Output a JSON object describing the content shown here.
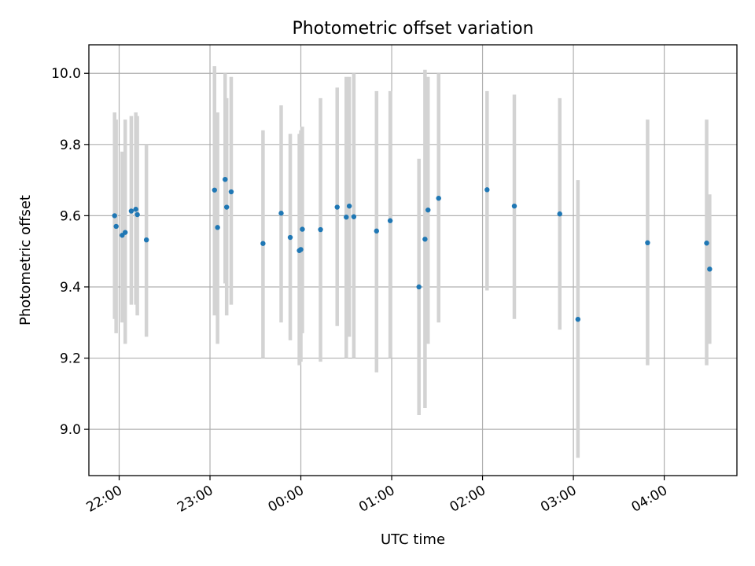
{
  "chart_data": {
    "type": "scatter",
    "title": "Photometric offset variation",
    "xlabel": "UTC time",
    "ylabel": "Photometric offset",
    "x_axis_type": "time",
    "xlim": [
      "21:40",
      "04:48"
    ],
    "ylim": [
      8.87,
      10.08
    ],
    "x_ticks": [
      "22:00",
      "23:00",
      "00:00",
      "01:00",
      "02:00",
      "03:00",
      "04:00"
    ],
    "y_ticks": [
      "9.0",
      "9.2",
      "9.4",
      "9.6",
      "9.8",
      "10.0"
    ],
    "grid": true,
    "marker_color": "#1f77b4",
    "errorbar_color": "#d3d3d3",
    "series": [
      {
        "points": [
          {
            "t": "21:57",
            "y": 9.6,
            "err_lo": 9.31,
            "err_hi": 9.89
          },
          {
            "t": "21:58",
            "y": 9.57,
            "err_lo": 9.27,
            "err_hi": 9.87
          },
          {
            "t": "22:02",
            "y": 9.545,
            "err_lo": 9.3,
            "err_hi": 9.78
          },
          {
            "t": "22:04",
            "y": 9.553,
            "err_lo": 9.24,
            "err_hi": 9.87
          },
          {
            "t": "22:08",
            "y": 9.613,
            "err_lo": 9.35,
            "err_hi": 9.88
          },
          {
            "t": "22:11",
            "y": 9.618,
            "err_lo": 9.35,
            "err_hi": 9.89
          },
          {
            "t": "22:12",
            "y": 9.603,
            "err_lo": 9.32,
            "err_hi": 9.88
          },
          {
            "t": "22:18",
            "y": 9.532,
            "err_lo": 9.26,
            "err_hi": 9.8
          },
          {
            "t": "23:03",
            "y": 9.672,
            "err_lo": 9.32,
            "err_hi": 10.02
          },
          {
            "t": "23:05",
            "y": 9.567,
            "err_lo": 9.24,
            "err_hi": 9.89
          },
          {
            "t": "23:10",
            "y": 9.702,
            "err_lo": 9.41,
            "err_hi": 10.0
          },
          {
            "t": "23:11",
            "y": 9.624,
            "err_lo": 9.32,
            "err_hi": 9.93
          },
          {
            "t": "23:14",
            "y": 9.667,
            "err_lo": 9.35,
            "err_hi": 9.99
          },
          {
            "t": "23:35",
            "y": 9.522,
            "err_lo": 9.2,
            "err_hi": 9.84
          },
          {
            "t": "23:47",
            "y": 9.607,
            "err_lo": 9.3,
            "err_hi": 9.91
          },
          {
            "t": "23:53",
            "y": 9.539,
            "err_lo": 9.25,
            "err_hi": 9.83
          },
          {
            "t": "23:59",
            "y": 9.502,
            "err_lo": 9.18,
            "err_hi": 9.83
          },
          {
            "t": "00:00",
            "y": 9.505,
            "err_lo": 9.19,
            "err_hi": 9.84
          },
          {
            "t": "00:01",
            "y": 9.562,
            "err_lo": 9.27,
            "err_hi": 9.85
          },
          {
            "t": "00:13",
            "y": 9.561,
            "err_lo": 9.19,
            "err_hi": 9.93
          },
          {
            "t": "00:24",
            "y": 9.624,
            "err_lo": 9.29,
            "err_hi": 9.96
          },
          {
            "t": "00:30",
            "y": 9.596,
            "err_lo": 9.2,
            "err_hi": 9.99
          },
          {
            "t": "00:32",
            "y": 9.627,
            "err_lo": 9.26,
            "err_hi": 9.99
          },
          {
            "t": "00:35",
            "y": 9.597,
            "err_lo": 9.2,
            "err_hi": 10.0
          },
          {
            "t": "00:50",
            "y": 9.557,
            "err_lo": 9.16,
            "err_hi": 9.95
          },
          {
            "t": "00:59",
            "y": 9.586,
            "err_lo": 9.2,
            "err_hi": 9.95
          },
          {
            "t": "01:18",
            "y": 9.4,
            "err_lo": 9.04,
            "err_hi": 9.76
          },
          {
            "t": "01:22",
            "y": 9.534,
            "err_lo": 9.06,
            "err_hi": 10.01
          },
          {
            "t": "01:24",
            "y": 9.616,
            "err_lo": 9.24,
            "err_hi": 9.99
          },
          {
            "t": "01:31",
            "y": 9.649,
            "err_lo": 9.3,
            "err_hi": 10.0
          },
          {
            "t": "02:03",
            "y": 9.673,
            "err_lo": 9.39,
            "err_hi": 9.95
          },
          {
            "t": "02:21",
            "y": 9.627,
            "err_lo": 9.31,
            "err_hi": 9.94
          },
          {
            "t": "02:51",
            "y": 9.605,
            "err_lo": 9.28,
            "err_hi": 9.93
          },
          {
            "t": "03:03",
            "y": 9.309,
            "err_lo": 8.92,
            "err_hi": 9.7
          },
          {
            "t": "03:49",
            "y": 9.524,
            "err_lo": 9.18,
            "err_hi": 9.87
          },
          {
            "t": "04:28",
            "y": 9.523,
            "err_lo": 9.18,
            "err_hi": 9.87
          },
          {
            "t": "04:30",
            "y": 9.45,
            "err_lo": 9.24,
            "err_hi": 9.66
          }
        ]
      }
    ]
  }
}
